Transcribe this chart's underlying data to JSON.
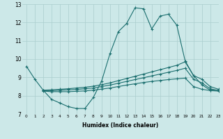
{
  "xlabel": "Humidex (Indice chaleur)",
  "xlim": [
    -0.5,
    23
  ],
  "ylim": [
    7,
    13
  ],
  "yticks": [
    7,
    8,
    9,
    10,
    11,
    12,
    13
  ],
  "xticks": [
    0,
    1,
    2,
    3,
    4,
    5,
    6,
    7,
    8,
    9,
    10,
    11,
    12,
    13,
    14,
    15,
    16,
    17,
    18,
    19,
    20,
    21,
    22,
    23
  ],
  "bg_color": "#cce8e8",
  "line_color": "#1a6e6e",
  "grid_color": "#aacece",
  "lines": [
    {
      "x": [
        0,
        1,
        2,
        3,
        4,
        5,
        6,
        7,
        8,
        9,
        10,
        11,
        12,
        13,
        14,
        15,
        16,
        17,
        18,
        19,
        20,
        21,
        22,
        23
      ],
      "y": [
        9.6,
        8.9,
        8.3,
        7.8,
        7.6,
        7.4,
        7.3,
        7.3,
        7.9,
        8.8,
        10.3,
        11.5,
        11.95,
        12.8,
        12.75,
        11.65,
        12.35,
        12.45,
        11.85,
        9.9,
        9.1,
        8.6,
        8.3,
        8.3
      ]
    },
    {
      "x": [
        2,
        3,
        4,
        5,
        6,
        7,
        8,
        9,
        10,
        11,
        12,
        13,
        14,
        15,
        16,
        17,
        18,
        19,
        20,
        21,
        22,
        23
      ],
      "y": [
        8.3,
        8.32,
        8.35,
        8.38,
        8.42,
        8.46,
        8.52,
        8.6,
        8.7,
        8.82,
        8.94,
        9.06,
        9.18,
        9.3,
        9.42,
        9.54,
        9.66,
        9.85,
        9.1,
        8.9,
        8.5,
        8.35
      ]
    },
    {
      "x": [
        2,
        3,
        4,
        5,
        6,
        7,
        8,
        9,
        10,
        11,
        12,
        13,
        14,
        15,
        16,
        17,
        18,
        19,
        20,
        21,
        22,
        23
      ],
      "y": [
        8.28,
        8.28,
        8.3,
        8.32,
        8.34,
        8.38,
        8.42,
        8.5,
        8.58,
        8.68,
        8.78,
        8.88,
        8.98,
        9.08,
        9.18,
        9.28,
        9.38,
        9.5,
        8.9,
        8.7,
        8.38,
        8.28
      ]
    },
    {
      "x": [
        2,
        3,
        4,
        5,
        6,
        7,
        8,
        9,
        10,
        11,
        12,
        13,
        14,
        15,
        16,
        17,
        18,
        19,
        20,
        21,
        22,
        23
      ],
      "y": [
        8.25,
        8.22,
        8.22,
        8.22,
        8.24,
        8.26,
        8.3,
        8.36,
        8.42,
        8.5,
        8.58,
        8.65,
        8.72,
        8.78,
        8.83,
        8.88,
        8.92,
        8.96,
        8.5,
        8.35,
        8.28,
        8.25
      ]
    }
  ]
}
